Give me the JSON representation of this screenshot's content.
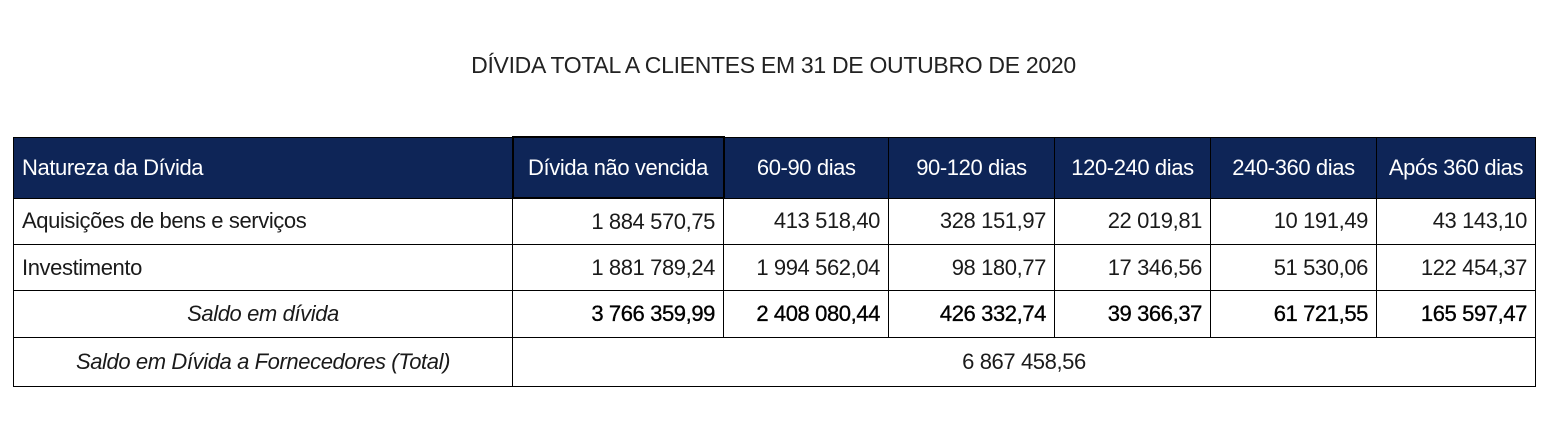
{
  "title": "DÍVIDA TOTAL A CLIENTES EM 31 DE OUTUBRO DE 2020",
  "table": {
    "header_color": "#0e2557",
    "columns": [
      "Natureza da Dívida",
      "Dívida não vencida",
      "60-90 dias",
      "90-120 dias",
      "120-240 dias",
      "240-360 dias",
      "Após 360 dias"
    ],
    "rows": [
      {
        "label": "Aquisições de bens e serviços",
        "values": [
          "1 884 570,75",
          "413 518,40",
          "328 151,97",
          "22 019,81",
          "10 191,49",
          "43 143,10"
        ]
      },
      {
        "label": "Investimento",
        "values": [
          "1 881 789,24",
          "1 994 562,04",
          "98 180,77",
          "17 346,56",
          "51 530,06",
          "122 454,37"
        ]
      }
    ],
    "subtotal": {
      "label": "Saldo em dívida",
      "values": [
        "3 766 359,99",
        "2 408 080,44",
        "426 332,74",
        "39 366,37",
        "61 721,55",
        "165 597,47"
      ]
    },
    "total": {
      "label": "Saldo em Dívida a Fornecedores (Total)",
      "value": "6 867 458,56"
    }
  }
}
